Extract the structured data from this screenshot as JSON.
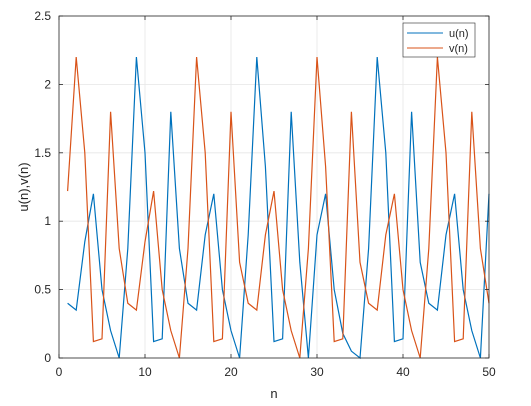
{
  "chart_data": {
    "type": "line",
    "title": "",
    "xlabel": "n",
    "ylabel": "u(n),v(n)",
    "xlim": [
      0,
      50
    ],
    "ylim": [
      0,
      2.5
    ],
    "xticks": [
      0,
      10,
      20,
      30,
      40,
      50
    ],
    "yticks": [
      0,
      0.5,
      1,
      1.5,
      2,
      2.5
    ],
    "xtick_labels": [
      "0",
      "10",
      "20",
      "30",
      "40",
      "50"
    ],
    "ytick_labels": [
      "0",
      "0.5",
      "1",
      "1.5",
      "2",
      "2.5"
    ],
    "grid": true,
    "legend_position": "top-right",
    "x": [
      1,
      2,
      3,
      4,
      5,
      6,
      7,
      8,
      9,
      10,
      11,
      12,
      13,
      14,
      15,
      16,
      17,
      18,
      19,
      20,
      21,
      22,
      23,
      24,
      25,
      26,
      27,
      28,
      29,
      30,
      31,
      32,
      33,
      34,
      35,
      36,
      37,
      38,
      39,
      40,
      41,
      42,
      43,
      44,
      45,
      46,
      47,
      48,
      49,
      50
    ],
    "series": [
      {
        "name": "u(n)",
        "color": "#0072BD",
        "values": [
          0.4,
          0.35,
          0.85,
          1.2,
          0.5,
          0.2,
          0.0,
          0.8,
          2.2,
          1.5,
          0.12,
          0.14,
          1.8,
          0.8,
          0.4,
          0.35,
          0.9,
          1.2,
          0.5,
          0.2,
          0.0,
          0.9,
          2.2,
          1.4,
          0.12,
          0.14,
          1.8,
          0.7,
          0.0,
          0.9,
          1.2,
          0.5,
          0.18,
          0.05,
          0.0,
          0.8,
          2.2,
          1.5,
          0.12,
          0.14,
          1.8,
          0.7,
          0.4,
          0.35,
          0.9,
          1.2,
          0.5,
          0.2,
          0.0,
          1.2
        ]
      },
      {
        "name": "v(n)",
        "color": "#D95319",
        "values": [
          1.22,
          2.2,
          1.5,
          0.12,
          0.14,
          1.8,
          0.8,
          0.4,
          0.35,
          0.85,
          1.22,
          0.5,
          0.2,
          0.0,
          0.8,
          2.2,
          1.5,
          0.12,
          0.14,
          1.8,
          0.7,
          0.4,
          0.35,
          0.9,
          1.22,
          0.5,
          0.2,
          0.0,
          0.8,
          2.2,
          1.4,
          0.12,
          0.14,
          1.8,
          0.7,
          0.4,
          0.35,
          0.9,
          1.2,
          0.5,
          0.2,
          0.0,
          0.8,
          2.2,
          1.5,
          0.12,
          0.14,
          1.8,
          0.8,
          0.4
        ]
      }
    ]
  }
}
